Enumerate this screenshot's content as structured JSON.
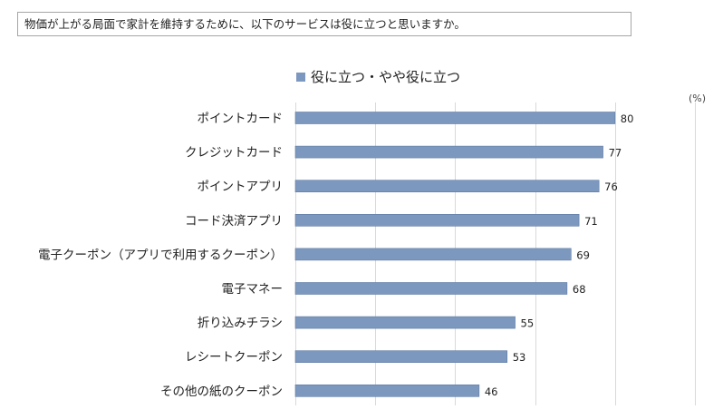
{
  "question": "物価が上がる局面で家計を維持するために、以下のサービスは役に立つと思いますか。",
  "chart_data": {
    "type": "bar",
    "orientation": "horizontal",
    "title": "",
    "legend": [
      "役に立つ・やや役に立つ"
    ],
    "unit": "(%)",
    "xlim": [
      0,
      100
    ],
    "gridlines": [
      0,
      20,
      40,
      60,
      80,
      100
    ],
    "categories": [
      "ポイントカード",
      "クレジットカード",
      "ポイントアプリ",
      "コード決済アプリ",
      "電子クーポン（アプリで利用するクーポン）",
      "電子マネー",
      "折り込みチラシ",
      "レシートクーポン",
      "その他の紙のクーポン"
    ],
    "series": [
      {
        "name": "役に立つ・やや役に立つ",
        "values": [
          80,
          77,
          76,
          71,
          69,
          68,
          55,
          53,
          46
        ]
      }
    ],
    "colors": {
      "bar": "#7d98be",
      "bar_edge": "#5f7ba3",
      "grid": "#d9d9d9",
      "legend_marker": "#7d98be"
    }
  }
}
